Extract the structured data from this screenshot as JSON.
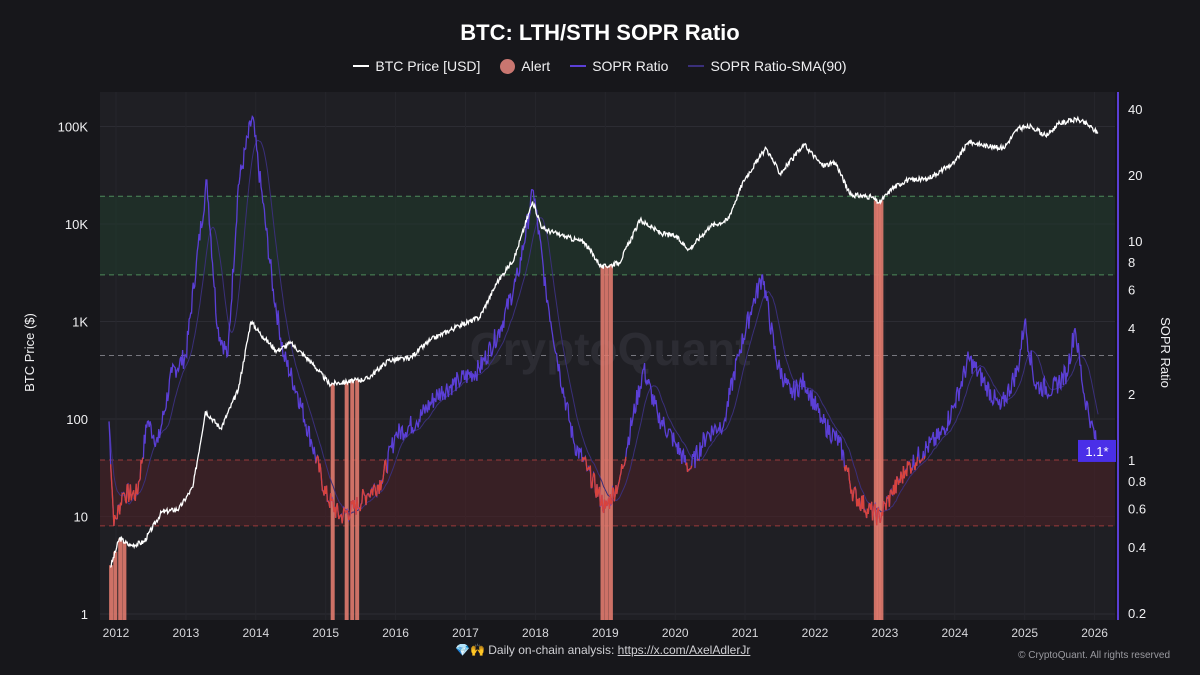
{
  "chart_data": {
    "type": "line",
    "title": "BTC: LTH/STH SOPR Ratio",
    "legend": [
      {
        "label": "BTC Price [USD]",
        "color": "#ffffff",
        "kind": "line"
      },
      {
        "label": "Alert",
        "color": "#c97670",
        "kind": "dot"
      },
      {
        "label": "SOPR Ratio",
        "color": "#5b3fd6",
        "kind": "line"
      },
      {
        "label": "SOPR Ratio-SMA(90)",
        "color": "#3a2f7a",
        "kind": "line"
      }
    ],
    "legend_position": "top-center",
    "xlabel": "",
    "ylabel_left": "BTC Price ($)",
    "ylabel_right": "SOPR Ratio",
    "x_ticks": [
      "2012",
      "2013",
      "2014",
      "2015",
      "2016",
      "2017",
      "2018",
      "2019",
      "2020",
      "2021",
      "2022",
      "2023",
      "2024",
      "2025",
      "2026"
    ],
    "x_range": [
      2011.8,
      2026.3
    ],
    "y_left": {
      "scale": "log",
      "range": [
        1,
        300000
      ],
      "ticks": [
        1,
        10,
        100,
        1000,
        10000,
        100000
      ],
      "tick_labels": [
        "1",
        "10",
        "100",
        "1K",
        "10K",
        "100K"
      ]
    },
    "y_right": {
      "scale": "log",
      "range": [
        0.2,
        50
      ],
      "ticks": [
        0.2,
        0.4,
        0.6,
        0.8,
        1,
        2,
        4,
        6,
        8,
        10,
        20,
        40
      ],
      "tick_labels": [
        "0.2",
        "0.4",
        "0.6",
        "0.8",
        "1",
        "2",
        "4",
        "6",
        "8",
        "10",
        "20",
        "40"
      ]
    },
    "last_value_label": "1.1*",
    "zones": {
      "green": [
        7,
        16
      ],
      "red": [
        0.5,
        1
      ],
      "dashed_line": 3
    },
    "btc_price": [
      [
        2011.92,
        3
      ],
      [
        2012.05,
        6
      ],
      [
        2012.2,
        5
      ],
      [
        2012.4,
        5.5
      ],
      [
        2012.65,
        11
      ],
      [
        2012.9,
        12
      ],
      [
        2013.1,
        20
      ],
      [
        2013.28,
        120
      ],
      [
        2013.5,
        80
      ],
      [
        2013.75,
        200
      ],
      [
        2013.93,
        1000
      ],
      [
        2014.1,
        700
      ],
      [
        2014.3,
        500
      ],
      [
        2014.5,
        600
      ],
      [
        2014.8,
        380
      ],
      [
        2015.05,
        230
      ],
      [
        2015.3,
        240
      ],
      [
        2015.6,
        260
      ],
      [
        2015.9,
        400
      ],
      [
        2016.2,
        420
      ],
      [
        2016.5,
        650
      ],
      [
        2016.9,
        900
      ],
      [
        2017.2,
        1100
      ],
      [
        2017.45,
        2500
      ],
      [
        2017.7,
        4500
      ],
      [
        2017.96,
        17000
      ],
      [
        2018.1,
        9000
      ],
      [
        2018.4,
        7500
      ],
      [
        2018.7,
        6500
      ],
      [
        2018.95,
        3600
      ],
      [
        2019.2,
        4000
      ],
      [
        2019.5,
        11000
      ],
      [
        2019.8,
        8000
      ],
      [
        2020.0,
        7500
      ],
      [
        2020.2,
        5500
      ],
      [
        2020.5,
        9500
      ],
      [
        2020.75,
        11000
      ],
      [
        2020.98,
        28000
      ],
      [
        2021.3,
        60000
      ],
      [
        2021.5,
        33000
      ],
      [
        2021.85,
        65000
      ],
      [
        2022.1,
        40000
      ],
      [
        2022.3,
        42000
      ],
      [
        2022.5,
        20000
      ],
      [
        2022.8,
        19000
      ],
      [
        2022.92,
        16500
      ],
      [
        2023.1,
        23000
      ],
      [
        2023.3,
        28000
      ],
      [
        2023.6,
        29000
      ],
      [
        2023.8,
        35000
      ],
      [
        2024.0,
        43000
      ],
      [
        2024.2,
        70000
      ],
      [
        2024.5,
        62000
      ],
      [
        2024.7,
        60000
      ],
      [
        2024.9,
        95000
      ],
      [
        2025.1,
        100000
      ],
      [
        2025.3,
        80000
      ],
      [
        2025.5,
        108000
      ],
      [
        2025.75,
        118000
      ],
      [
        2025.9,
        105000
      ],
      [
        2026.05,
        85000
      ]
    ],
    "sopr_ratio": [
      [
        2011.9,
        1.5
      ],
      [
        2011.97,
        0.5
      ],
      [
        2012.1,
        0.7
      ],
      [
        2012.3,
        0.7
      ],
      [
        2012.45,
        1.5
      ],
      [
        2012.6,
        1.2
      ],
      [
        2012.8,
        2.5
      ],
      [
        2013.0,
        3
      ],
      [
        2013.15,
        8
      ],
      [
        2013.3,
        19
      ],
      [
        2013.45,
        4
      ],
      [
        2013.6,
        3
      ],
      [
        2013.75,
        18
      ],
      [
        2013.95,
        37
      ],
      [
        2014.1,
        15
      ],
      [
        2014.25,
        6
      ],
      [
        2014.4,
        3
      ],
      [
        2014.6,
        2
      ],
      [
        2014.8,
        1.2
      ],
      [
        2015.0,
        0.7
      ],
      [
        2015.2,
        0.55
      ],
      [
        2015.4,
        0.6
      ],
      [
        2015.6,
        0.7
      ],
      [
        2015.8,
        0.8
      ],
      [
        2016.0,
        1.3
      ],
      [
        2016.3,
        1.5
      ],
      [
        2016.6,
        2
      ],
      [
        2016.9,
        2.3
      ],
      [
        2017.2,
        2.6
      ],
      [
        2017.5,
        4
      ],
      [
        2017.75,
        7
      ],
      [
        2017.97,
        17
      ],
      [
        2018.15,
        6
      ],
      [
        2018.35,
        2.5
      ],
      [
        2018.55,
        1.2
      ],
      [
        2018.75,
        0.9
      ],
      [
        2019.0,
        0.6
      ],
      [
        2019.2,
        0.8
      ],
      [
        2019.4,
        1.6
      ],
      [
        2019.55,
        2.6
      ],
      [
        2019.75,
        1.6
      ],
      [
        2020.0,
        1.2
      ],
      [
        2020.2,
        0.9
      ],
      [
        2020.45,
        1.3
      ],
      [
        2020.7,
        1.5
      ],
      [
        2020.9,
        3
      ],
      [
        2021.1,
        5
      ],
      [
        2021.25,
        7
      ],
      [
        2021.45,
        2.8
      ],
      [
        2021.65,
        2
      ],
      [
        2021.85,
        2.3
      ],
      [
        2022.1,
        1.5
      ],
      [
        2022.35,
        1.2
      ],
      [
        2022.55,
        0.7
      ],
      [
        2022.75,
        0.6
      ],
      [
        2022.92,
        0.55
      ],
      [
        2023.1,
        0.7
      ],
      [
        2023.3,
        0.9
      ],
      [
        2023.55,
        1.1
      ],
      [
        2023.8,
        1.3
      ],
      [
        2024.0,
        1.8
      ],
      [
        2024.2,
        2.9
      ],
      [
        2024.45,
        2.2
      ],
      [
        2024.65,
        1.7
      ],
      [
        2024.9,
        2.6
      ],
      [
        2025.0,
        4.3
      ],
      [
        2025.15,
        2.2
      ],
      [
        2025.4,
        2.1
      ],
      [
        2025.6,
        2.5
      ],
      [
        2025.72,
        4
      ],
      [
        2025.85,
        2
      ],
      [
        2025.95,
        1.5
      ],
      [
        2026.05,
        1.1
      ]
    ],
    "alerts": [
      2011.93,
      2011.99,
      2012.06,
      2012.12,
      2015.1,
      2015.3,
      2015.38,
      2015.45,
      2018.96,
      2019.02,
      2019.08,
      2022.87,
      2022.91,
      2022.95
    ]
  },
  "watermark": "CryptoQuant",
  "footer": {
    "emoji": "💎🙌",
    "text": "Daily on-chain analysis: ",
    "link": "https://x.com/AxelAdlerJr",
    "copyright": "© CryptoQuant. All rights reserved"
  }
}
